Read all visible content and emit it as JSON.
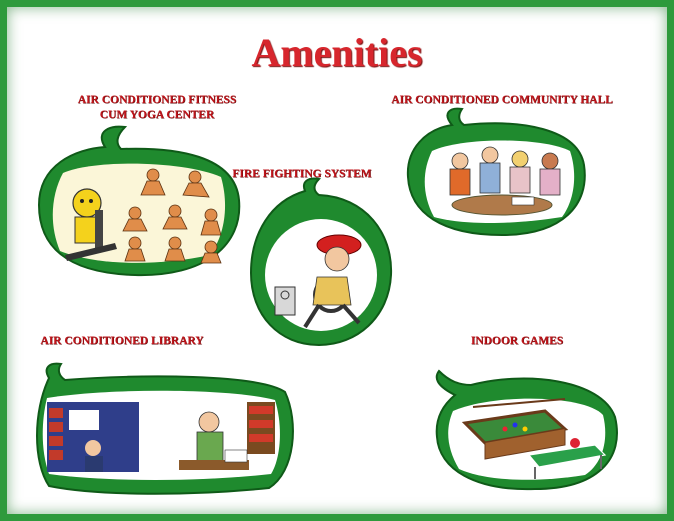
{
  "title": "Amenities",
  "amenities": [
    {
      "label_line1": "AIR CONDITIONED FITNESS",
      "label_line2": "CUM YOGA CENTER",
      "icon": "fitness-yoga-illustration"
    },
    {
      "label": "AIR CONDITIONED COMMUNITY HALL",
      "icon": "community-hall-illustration"
    },
    {
      "label": "FIRE FIGHTING SYSTEM",
      "icon": "firefighter-illustration"
    },
    {
      "label": "AIR CONDITIONED LIBRARY",
      "icon": "library-illustration"
    },
    {
      "label": "INDOOR GAMES",
      "icon": "indoor-games-illustration"
    }
  ],
  "colors": {
    "border": "#2e9a3c",
    "title": "#d7262d",
    "labels": "#c0151b",
    "frame_green": "#1f8a2e",
    "panel_fill": "#fbf6d8"
  }
}
